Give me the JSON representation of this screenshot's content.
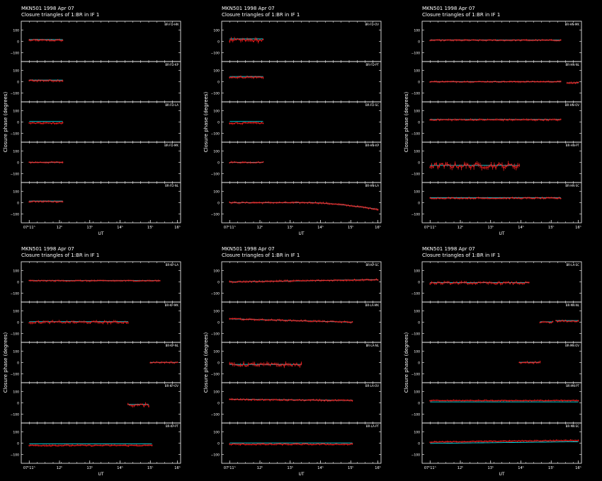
{
  "chart_data": {
    "type": "scatter",
    "colors": {
      "background": "#000000",
      "frame": "#ffffff",
      "data": "#ff2020",
      "model": "#00e5ee"
    },
    "x_tick_labels": [
      "07ʰ11ʰ",
      "12ʰ",
      "13ʰ",
      "14ʰ",
      "15ʰ",
      "16ʰ"
    ],
    "y_tick_labels": [
      "100",
      "0",
      "−100"
    ],
    "xlabel": "UT",
    "ylabel": "Closure phase   (degrees)",
    "ylim": [
      -180,
      180
    ],
    "panels": [
      {
        "title": "MKN501   1998 Apr 07",
        "subtitle": "Closure triangles of 1:BR in IF 1",
        "rows": [
          {
            "label": "BR-FD-HN",
            "segments": [
              {
                "x0": 0.05,
                "x1": 0.26,
                "y": 10,
                "noise": 10,
                "model_off": 10
              }
            ]
          },
          {
            "label": "BR-FD-KP",
            "segments": [
              {
                "x0": 0.05,
                "x1": 0.26,
                "y": 10,
                "noise": 10,
                "model_off": 8
              }
            ]
          },
          {
            "label": "BR-FD-LA",
            "segments": [
              {
                "x0": 0.05,
                "x1": 0.26,
                "y": -10,
                "noise": 10,
                "model_off": 25
              }
            ]
          },
          {
            "label": "BR-FD-MK",
            "segments": [
              {
                "x0": 0.05,
                "x1": 0.26,
                "y": 0,
                "noise": 8,
                "model_off": 0
              }
            ]
          },
          {
            "label": "BR-FD-NL",
            "segments": [
              {
                "x0": 0.05,
                "x1": 0.26,
                "y": 10,
                "noise": 8,
                "model_off": 8
              }
            ]
          }
        ]
      },
      {
        "title": "MKN501   1998 Apr 07",
        "subtitle": "Closure triangles of 1:BR in IF 1",
        "rows": [
          {
            "label": "BR-FD-OV",
            "segments": [
              {
                "x0": 0.05,
                "x1": 0.26,
                "y": 10,
                "noise": 25,
                "model_off": 20
              }
            ]
          },
          {
            "label": "BR-FD-PT",
            "segments": [
              {
                "x0": 0.05,
                "x1": 0.26,
                "y": 40,
                "noise": 12,
                "model_off": 10
              }
            ]
          },
          {
            "label": "BR-FD-SC",
            "segments": [
              {
                "x0": 0.05,
                "x1": 0.26,
                "y": -10,
                "noise": 10,
                "model_off": 25
              }
            ]
          },
          {
            "label": "BR-HN-KP",
            "segments": [
              {
                "x0": 0.05,
                "x1": 0.26,
                "y": 0,
                "noise": 8,
                "model_off": 0
              }
            ]
          },
          {
            "label": "BR-HN-LA",
            "segments": [
              {
                "x0": 0.05,
                "x1": 0.98,
                "y": 0,
                "noise": 8,
                "model_off": 0,
                "drop": -60
              }
            ]
          }
        ]
      },
      {
        "title": "MKN501   1998 Apr 07",
        "subtitle": "Closure triangles of 1:BR in IF 1",
        "rows": [
          {
            "label": "BR-HN-MK",
            "segments": [
              {
                "x0": 0.05,
                "x1": 0.87,
                "y": 10,
                "noise": 6,
                "model_off": 3
              }
            ]
          },
          {
            "label": "BR-HN-NL",
            "segments": [
              {
                "x0": 0.05,
                "x1": 0.87,
                "y": 0,
                "noise": 6,
                "model_off": 0
              },
              {
                "x0": 0.91,
                "x1": 0.98,
                "y": -10,
                "noise": 8,
                "model_off": 0
              }
            ]
          },
          {
            "label": "BR-HN-OV",
            "segments": [
              {
                "x0": 0.05,
                "x1": 0.87,
                "y": 20,
                "noise": 8,
                "model_off": 5
              }
            ]
          },
          {
            "label": "BR-HN-PT",
            "segments": [
              {
                "x0": 0.05,
                "x1": 0.61,
                "y": -30,
                "noise": 40,
                "model_off": 5
              }
            ]
          },
          {
            "label": "BR-HN-SC",
            "segments": [
              {
                "x0": 0.05,
                "x1": 0.87,
                "y": 40,
                "noise": 8,
                "model_off": 8
              }
            ]
          }
        ]
      },
      {
        "title": "MKN501   1998 Apr 07",
        "subtitle": "Closure triangles of 1:BR in IF 1",
        "rows": [
          {
            "label": "BR-KP-LA",
            "segments": [
              {
                "x0": 0.05,
                "x1": 0.87,
                "y": 10,
                "noise": 6,
                "model_off": 2
              }
            ]
          },
          {
            "label": "BR-KP-MK",
            "segments": [
              {
                "x0": 0.05,
                "x1": 0.67,
                "y": 0,
                "noise": 15,
                "model_off": 8
              }
            ]
          },
          {
            "label": "BR-KP-NL",
            "segments": [
              {
                "x0": 0.81,
                "x1": 0.98,
                "y": 0,
                "noise": 8,
                "model_off": 2
              }
            ]
          },
          {
            "label": "BR-KP-OV",
            "segments": [
              {
                "x0": 0.67,
                "x1": 0.8,
                "y": -20,
                "noise": 20,
                "model_off": 10
              }
            ]
          },
          {
            "label": "BR-KP-PT",
            "segments": [
              {
                "x0": 0.05,
                "x1": 0.82,
                "y": -20,
                "noise": 8,
                "model_off": 25
              }
            ]
          }
        ]
      },
      {
        "title": "MKN501   1998 Apr 07",
        "subtitle": "Closure triangles of 1:BR in IF 1",
        "rows": [
          {
            "label": "BR-KP-SC",
            "segments": [
              {
                "x0": 0.05,
                "x1": 0.98,
                "y": 0,
                "noise": 8,
                "model_off": 0,
                "drift": 20
              }
            ]
          },
          {
            "label": "BR-LA-MK",
            "segments": [
              {
                "x0": 0.05,
                "x1": 0.82,
                "y": 30,
                "noise": 8,
                "model_off": 0,
                "drift": -30
              }
            ]
          },
          {
            "label": "BR-LA-NL",
            "segments": [
              {
                "x0": 0.05,
                "x1": 0.5,
                "y": -20,
                "noise": 25,
                "model_off": 5
              }
            ]
          },
          {
            "label": "BR-LA-OV",
            "segments": [
              {
                "x0": 0.05,
                "x1": 0.82,
                "y": 30,
                "noise": 8,
                "model_off": 3,
                "drift": -10
              }
            ]
          },
          {
            "label": "BR-LA-PT",
            "segments": [
              {
                "x0": 0.05,
                "x1": 0.82,
                "y": -10,
                "noise": 8,
                "model_off": 20
              }
            ]
          }
        ]
      },
      {
        "title": "MKN501   1998 Apr 07",
        "subtitle": "Closure triangles of 1:BR in IF 1",
        "rows": [
          {
            "label": "BR-LA-SC",
            "segments": [
              {
                "x0": 0.05,
                "x1": 0.67,
                "y": -10,
                "noise": 15,
                "model_off": 5
              }
            ]
          },
          {
            "label": "BR-MK-NL",
            "segments": [
              {
                "x0": 0.74,
                "x1": 0.82,
                "y": 0,
                "noise": 10,
                "model_off": 5
              },
              {
                "x0": 0.84,
                "x1": 0.98,
                "y": 10,
                "noise": 10,
                "model_off": 8
              }
            ]
          },
          {
            "label": "BR-MK-OV",
            "segments": [
              {
                "x0": 0.61,
                "x1": 0.74,
                "y": 0,
                "noise": 10,
                "model_off": 3
              }
            ]
          },
          {
            "label": "BR-MK-PT",
            "segments": [
              {
                "x0": 0.05,
                "x1": 0.98,
                "y": 20,
                "noise": 6,
                "model_off": -20
              }
            ]
          },
          {
            "label": "BR-MK-SC",
            "segments": [
              {
                "x0": 0.05,
                "x1": 0.98,
                "y": 10,
                "noise": 6,
                "model_off": -20,
                "drift": 15
              }
            ]
          }
        ]
      }
    ]
  }
}
